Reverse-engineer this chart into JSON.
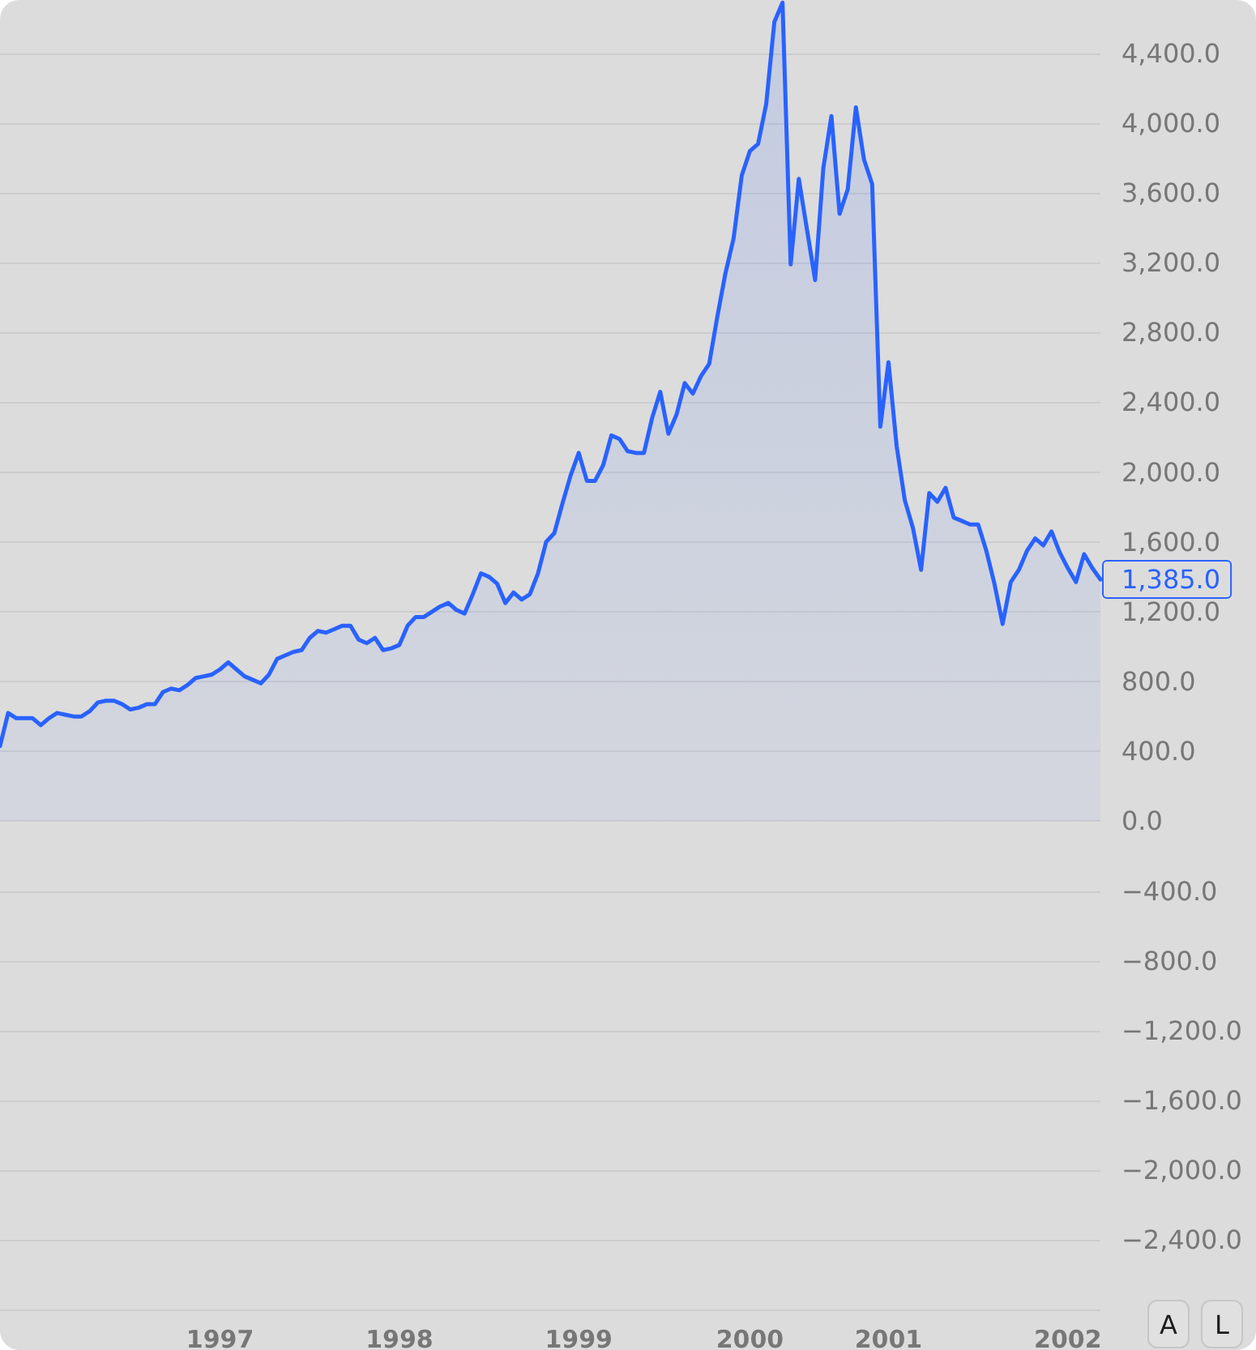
{
  "chart_data": {
    "type": "area",
    "color": "#2962ff",
    "marker": "none",
    "grid": "y",
    "categories": [
      null,
      null,
      null,
      null,
      null,
      null,
      null,
      null,
      null,
      null,
      null,
      null,
      null,
      null,
      null,
      null,
      null,
      null,
      null,
      null,
      null,
      null,
      null,
      null,
      null,
      null,
      null,
      "1997",
      null,
      null,
      null,
      null,
      null,
      null,
      null,
      null,
      null,
      null,
      null,
      null,
      null,
      null,
      null,
      null,
      null,
      null,
      null,
      null,
      null,
      "1998",
      null,
      null,
      null,
      null,
      null,
      null,
      null,
      null,
      null,
      null,
      null,
      null,
      null,
      null,
      null,
      null,
      null,
      null,
      null,
      null,
      null,
      "1999",
      null,
      null,
      null,
      null,
      null,
      null,
      null,
      null,
      null,
      null,
      null,
      null,
      null,
      null,
      null,
      null,
      null,
      null,
      null,
      null,
      "2000",
      null,
      null,
      null,
      null,
      null,
      null,
      null,
      null,
      null,
      null,
      null,
      null,
      null,
      null,
      null,
      null,
      "2001",
      null,
      null,
      null,
      null,
      null,
      null,
      null,
      null,
      null,
      null,
      null,
      null,
      null,
      null,
      null,
      null,
      null,
      null,
      null,
      null,
      null,
      "2002",
      null,
      null,
      null,
      null
    ],
    "values": [
      430,
      620,
      590,
      590,
      590,
      550,
      590,
      620,
      610,
      600,
      600,
      630,
      680,
      690,
      690,
      670,
      640,
      650,
      670,
      670,
      740,
      760,
      750,
      780,
      820,
      830,
      840,
      870,
      910,
      870,
      830,
      810,
      790,
      840,
      930,
      950,
      970,
      980,
      1050,
      1090,
      1080,
      1100,
      1120,
      1120,
      1040,
      1020,
      1050,
      980,
      990,
      1010,
      1120,
      1170,
      1170,
      1200,
      1230,
      1250,
      1210,
      1190,
      1300,
      1420,
      1400,
      1360,
      1250,
      1310,
      1270,
      1300,
      1420,
      1600,
      1650,
      1820,
      1980,
      2110,
      1950,
      1950,
      2040,
      2210,
      2190,
      2120,
      2110,
      2110,
      2310,
      2460,
      2220,
      2330,
      2510,
      2450,
      2550,
      2620,
      2890,
      3140,
      3340,
      3700,
      3840,
      3880,
      4110,
      4580,
      4690,
      3190,
      3680,
      3390,
      3100,
      3740,
      4040,
      3480,
      3620,
      4090,
      3790,
      3650,
      2260,
      2630,
      2150,
      1840,
      1680,
      1440,
      1880,
      1830,
      1910,
      1740,
      1720,
      1700,
      1700,
      1550,
      1360,
      1130,
      1370,
      1440,
      1550,
      1620,
      1580,
      1660,
      1540,
      1450,
      1370,
      1530,
      1450,
      1385
    ],
    "value_labels": [
      null,
      null,
      null,
      null,
      null,
      null,
      null,
      null,
      null,
      null,
      null,
      null,
      null,
      null,
      null,
      null,
      null,
      null,
      null,
      null,
      null,
      null,
      null,
      null,
      null,
      null,
      null,
      null,
      null,
      null,
      null,
      null,
      null,
      null,
      null,
      null,
      null,
      null,
      null,
      null,
      null,
      null,
      null,
      null,
      null,
      null,
      null,
      null,
      null,
      null,
      null,
      null,
      null,
      null,
      null,
      null,
      null,
      null,
      null,
      null,
      null,
      null,
      null,
      null,
      null,
      null,
      null,
      null,
      null,
      null,
      null,
      null,
      null,
      null,
      null,
      null,
      null,
      null,
      null,
      null,
      null,
      null,
      null,
      null,
      null,
      null,
      null,
      null,
      null,
      null,
      null,
      null,
      null,
      null,
      null,
      null,
      null,
      null,
      null,
      null,
      null,
      null,
      null,
      null,
      null,
      null,
      null,
      null,
      null,
      null,
      null,
      null,
      null,
      null,
      null,
      null,
      null,
      null,
      null,
      null,
      null,
      null,
      null,
      null,
      null,
      null,
      null,
      null,
      null,
      null,
      null,
      null,
      null,
      null,
      null,
      "1,385.0"
    ],
    "ylim": [
      -2835,
      4705
    ],
    "yticks": [
      {
        "value": -2800,
        "label": null
      },
      {
        "value": -2400,
        "label": "−2,400.0"
      },
      {
        "value": -2000,
        "label": "−2,000.0"
      },
      {
        "value": -1600,
        "label": "−1,600.0"
      },
      {
        "value": -1200,
        "label": "−1,200.0"
      },
      {
        "value": -800,
        "label": "−800.0"
      },
      {
        "value": -400,
        "label": "−400.0"
      },
      {
        "value": 0,
        "label": "0.0"
      },
      {
        "value": 400,
        "label": "400.0"
      },
      {
        "value": 800,
        "label": "800.0"
      },
      {
        "value": 1200,
        "label": "1,200.0"
      },
      {
        "value": 1600,
        "label": "1,600.0"
      },
      {
        "value": 2000,
        "label": "2,000.0"
      },
      {
        "value": 2400,
        "label": "2,400.0"
      },
      {
        "value": 2800,
        "label": "2,800.0"
      },
      {
        "value": 3200,
        "label": "3,200.0"
      },
      {
        "value": 3600,
        "label": "3,600.0"
      },
      {
        "value": 4000,
        "label": "4,000.0"
      },
      {
        "value": 4400,
        "label": "4,400.0"
      }
    ],
    "annotations": [
      "A",
      "L"
    ]
  }
}
